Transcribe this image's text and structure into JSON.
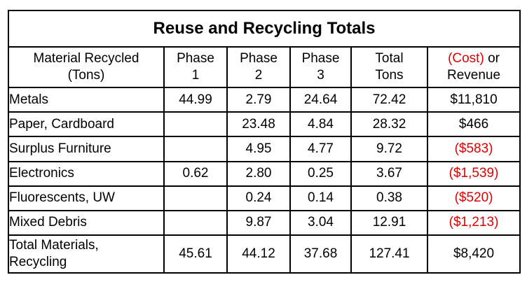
{
  "table": {
    "title": "Reuse and Recycling Totals",
    "headers": [
      {
        "line1": "Material Recycled",
        "line2": "(Tons)"
      },
      {
        "line1": "Phase",
        "line2": "1"
      },
      {
        "line1": "Phase",
        "line2": "2"
      },
      {
        "line1": "Phase",
        "line2": "3"
      },
      {
        "line1": "Total",
        "line2": "Tons"
      },
      {
        "line1_cost": "(Cost)",
        "line1_rest": " or",
        "line2": "Revenue"
      }
    ],
    "rows": [
      {
        "material": "Metals",
        "phase1": "44.99",
        "phase2": "2.79",
        "phase3": "24.64",
        "total": "72.42",
        "value": "$11,810",
        "is_cost": false
      },
      {
        "material": "Paper, Cardboard",
        "phase1": "",
        "phase2": "23.48",
        "phase3": "4.84",
        "total": "28.32",
        "value": "$466",
        "is_cost": false
      },
      {
        "material": "Surplus Furniture",
        "phase1": "",
        "phase2": "4.95",
        "phase3": "4.77",
        "total": "9.72",
        "value": "($583)",
        "is_cost": true
      },
      {
        "material": "Electronics",
        "phase1": "0.62",
        "phase2": "2.80",
        "phase3": "0.25",
        "total": "3.67",
        "value": "($1,539)",
        "is_cost": true
      },
      {
        "material": "Fluorescents, UW",
        "phase1": "",
        "phase2": "0.24",
        "phase3": "0.14",
        "total": "0.38",
        "value": "($520)",
        "is_cost": true
      },
      {
        "material": "Mixed Debris",
        "phase1": "",
        "phase2": "9.87",
        "phase3": "3.04",
        "total": "12.91",
        "value": "($1,213)",
        "is_cost": true
      }
    ],
    "total_row": {
      "material_line1": "Total Materials,",
      "material_line2": "Recycling",
      "phase1": "45.61",
      "phase2": "44.12",
      "phase3": "37.68",
      "total": "127.41",
      "value": "$8,420"
    },
    "colors": {
      "cost": "#e00000",
      "text": "#000000",
      "border": "#000000"
    }
  }
}
